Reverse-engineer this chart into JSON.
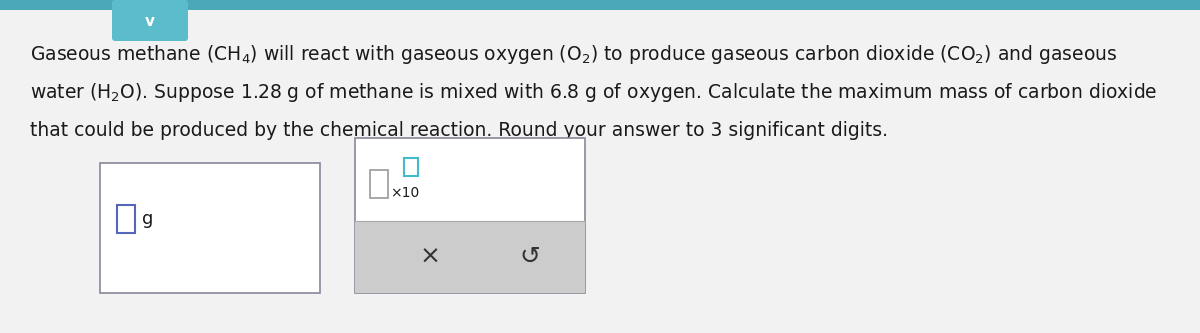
{
  "bg_color": "#e8e8e8",
  "top_tab_color": "#5bbccc",
  "top_bar_color": "#4aa8b8",
  "chevron_char": "v",
  "text_line1": "Gaseous methane $\\left(\\mathrm{CH_4}\\right)$ will react with gaseous oxygen $\\left(\\mathrm{O_2}\\right)$ to produce gaseous carbon dioxide $\\left(\\mathrm{CO_2}\\right)$ and gaseous",
  "text_line2": "water $\\left(\\mathrm{H_2O}\\right)$. Suppose 1.28 g of methane is mixed with 6.8 g of oxygen. Calculate the maximum mass of carbon dioxide",
  "text_line3": "that could be produced by the chemical reaction. Round your answer to 3 significant digits.",
  "font_size": 13.5,
  "text_color": "#1a1a1a",
  "box_border_color": "#888899",
  "box1_color": "#f5f5f5",
  "box2_color": "#f5f5f5",
  "gray_btn_color": "#cccccc",
  "cursor_color_1": "#5566bb",
  "cursor_color_2": "#44bbcc",
  "x_symbol": "×",
  "refresh_symbol": "↺"
}
